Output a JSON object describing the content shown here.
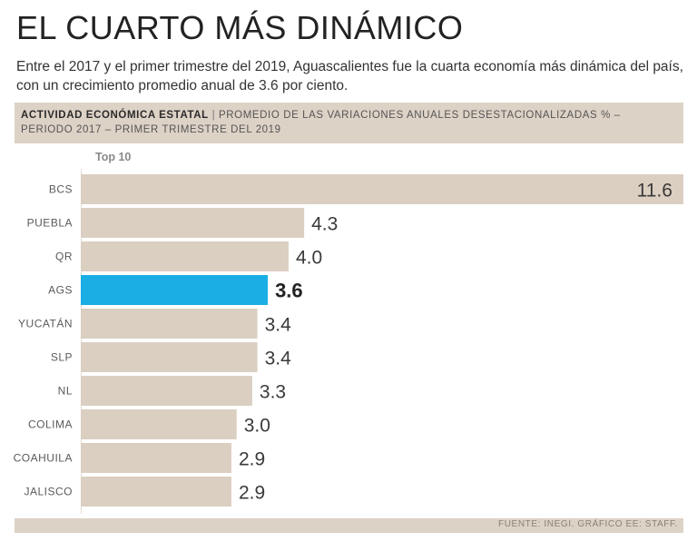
{
  "title": "EL CUARTO MÁS DINÁMICO",
  "subtitle": "Entre el 2017 y el primer trimestre del 2019, Aguascalientes fue la cuarta economía más dinámica del país, con un crecimiento promedio anual de 3.6 por ciento.",
  "header": {
    "label_bold": "ACTIVIDAD ECONÓMICA ESTATAL",
    "separator": " | ",
    "label_rest": "PROMEDIO DE LAS VARIACIONES ANUALES DESESTACIONALIZADAS % – PERIODO 2017 – PRIMER TRIMESTRE DEL 2019"
  },
  "top_label": "Top 10",
  "footer": "FUENTE: INEGI. GRÁFICO EE: STAFF.",
  "colors": {
    "bar": "#dbcfc2",
    "highlight": "#1aaee5",
    "label_text": "#5a5a5a",
    "value_text": "#3a3a3a"
  },
  "chart_data": {
    "type": "bar",
    "orientation": "horizontal",
    "title": "ACTIVIDAD ECONÓMICA ESTATAL",
    "xlabel": "",
    "ylabel": "",
    "categories": [
      "BCS",
      "PUEBLA",
      "QR",
      "AGS",
      "YUCATÁN",
      "SLP",
      "NL",
      "COLIMA",
      "COAHUILA",
      "JALISCO"
    ],
    "values": [
      11.6,
      4.3,
      4.0,
      3.6,
      3.4,
      3.4,
      3.3,
      3.0,
      2.9,
      2.9
    ],
    "value_labels": [
      "11.6",
      "4.3",
      "4.0",
      "3.6",
      "3.4",
      "3.4",
      "3.3",
      "3.0",
      "2.9",
      "2.9"
    ],
    "highlight": "AGS",
    "xlim": [
      0,
      11.6
    ]
  }
}
